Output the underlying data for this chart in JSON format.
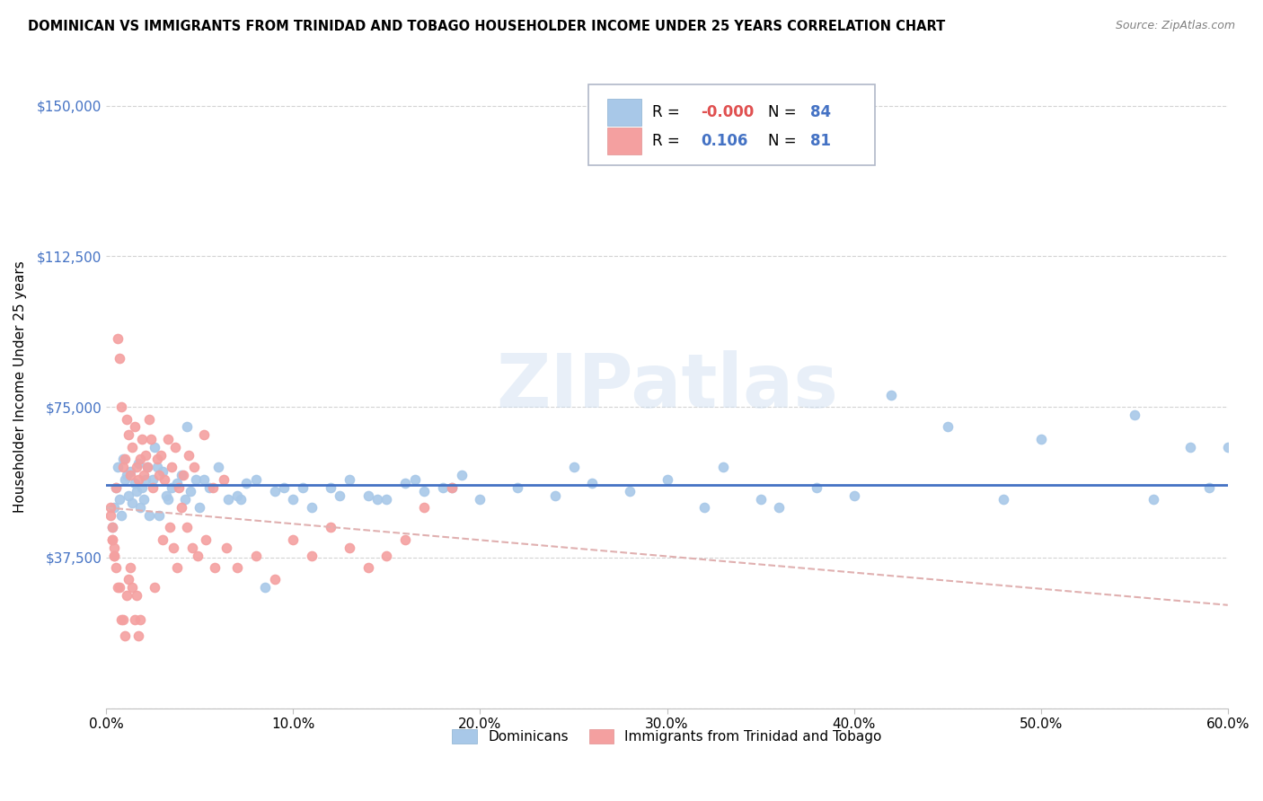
{
  "title": "DOMINICAN VS IMMIGRANTS FROM TRINIDAD AND TOBAGO HOUSEHOLDER INCOME UNDER 25 YEARS CORRELATION CHART",
  "source": "Source: ZipAtlas.com",
  "ylabel": "Householder Income Under 25 years",
  "xlim": [
    0.0,
    0.6
  ],
  "ylim": [
    0,
    160000
  ],
  "yticks": [
    0,
    37500,
    75000,
    112500,
    150000
  ],
  "ytick_labels": [
    "",
    "$37,500",
    "$75,000",
    "$112,500",
    "$150,000"
  ],
  "xticks": [
    0.0,
    0.1,
    0.2,
    0.3,
    0.4,
    0.5,
    0.6
  ],
  "xtick_labels": [
    "0.0%",
    "10.0%",
    "20.0%",
    "30.0%",
    "40.0%",
    "50.0%",
    "60.0%"
  ],
  "color_blue": "#a8c8e8",
  "color_pink": "#f4a0a0",
  "color_line_blue": "#4472c4",
  "color_line_pink": "#e0b0b0",
  "watermark": "ZIPatlas",
  "dominicans_x": [
    0.003,
    0.004,
    0.005,
    0.006,
    0.007,
    0.008,
    0.009,
    0.01,
    0.011,
    0.012,
    0.013,
    0.014,
    0.015,
    0.016,
    0.017,
    0.018,
    0.019,
    0.02,
    0.021,
    0.022,
    0.023,
    0.025,
    0.026,
    0.027,
    0.028,
    0.03,
    0.032,
    0.033,
    0.035,
    0.038,
    0.04,
    0.042,
    0.043,
    0.045,
    0.048,
    0.05,
    0.052,
    0.055,
    0.06,
    0.065,
    0.07,
    0.072,
    0.075,
    0.08,
    0.085,
    0.09,
    0.095,
    0.1,
    0.105,
    0.11,
    0.12,
    0.125,
    0.13,
    0.14,
    0.145,
    0.15,
    0.16,
    0.165,
    0.17,
    0.18,
    0.185,
    0.19,
    0.2,
    0.22,
    0.24,
    0.25,
    0.26,
    0.28,
    0.3,
    0.32,
    0.33,
    0.35,
    0.36,
    0.38,
    0.4,
    0.42,
    0.45,
    0.48,
    0.5,
    0.55,
    0.56,
    0.58,
    0.59,
    0.6
  ],
  "dominicans_y": [
    45000,
    50000,
    55000,
    60000,
    52000,
    48000,
    62000,
    57000,
    58000,
    53000,
    59000,
    51000,
    56000,
    54000,
    61000,
    50000,
    55000,
    52000,
    57000,
    60000,
    48000,
    57000,
    65000,
    60000,
    48000,
    59000,
    53000,
    52000,
    55000,
    56000,
    58000,
    52000,
    70000,
    54000,
    57000,
    50000,
    57000,
    55000,
    60000,
    52000,
    53000,
    52000,
    56000,
    57000,
    30000,
    54000,
    55000,
    52000,
    55000,
    50000,
    55000,
    53000,
    57000,
    53000,
    52000,
    52000,
    56000,
    57000,
    54000,
    55000,
    55000,
    58000,
    52000,
    55000,
    53000,
    60000,
    56000,
    54000,
    57000,
    50000,
    60000,
    52000,
    50000,
    55000,
    53000,
    78000,
    70000,
    52000,
    67000,
    73000,
    52000,
    65000,
    55000,
    65000
  ],
  "trinidad_x": [
    0.002,
    0.002,
    0.003,
    0.003,
    0.004,
    0.004,
    0.005,
    0.005,
    0.006,
    0.006,
    0.007,
    0.007,
    0.008,
    0.008,
    0.009,
    0.009,
    0.01,
    0.01,
    0.011,
    0.011,
    0.012,
    0.012,
    0.013,
    0.013,
    0.014,
    0.014,
    0.015,
    0.015,
    0.016,
    0.016,
    0.017,
    0.017,
    0.018,
    0.018,
    0.019,
    0.02,
    0.021,
    0.022,
    0.023,
    0.024,
    0.025,
    0.026,
    0.027,
    0.028,
    0.029,
    0.03,
    0.031,
    0.033,
    0.034,
    0.035,
    0.036,
    0.037,
    0.038,
    0.039,
    0.04,
    0.041,
    0.043,
    0.044,
    0.046,
    0.047,
    0.049,
    0.052,
    0.053,
    0.057,
    0.058,
    0.063,
    0.064,
    0.07,
    0.08,
    0.09,
    0.1,
    0.11,
    0.12,
    0.13,
    0.14,
    0.15,
    0.16,
    0.17,
    0.185,
    0.003,
    0.004
  ],
  "trinidad_y": [
    50000,
    48000,
    45000,
    42000,
    40000,
    38000,
    55000,
    35000,
    92000,
    30000,
    87000,
    30000,
    75000,
    22000,
    60000,
    22000,
    62000,
    18000,
    72000,
    28000,
    68000,
    32000,
    58000,
    35000,
    65000,
    30000,
    70000,
    22000,
    60000,
    28000,
    57000,
    18000,
    62000,
    22000,
    67000,
    58000,
    63000,
    60000,
    72000,
    67000,
    55000,
    30000,
    62000,
    58000,
    63000,
    42000,
    57000,
    67000,
    45000,
    60000,
    40000,
    65000,
    35000,
    55000,
    50000,
    58000,
    45000,
    63000,
    40000,
    60000,
    38000,
    68000,
    42000,
    55000,
    35000,
    57000,
    40000,
    35000,
    38000,
    32000,
    42000,
    38000,
    45000,
    40000,
    35000,
    38000,
    42000,
    50000,
    55000,
    42000,
    38000
  ]
}
